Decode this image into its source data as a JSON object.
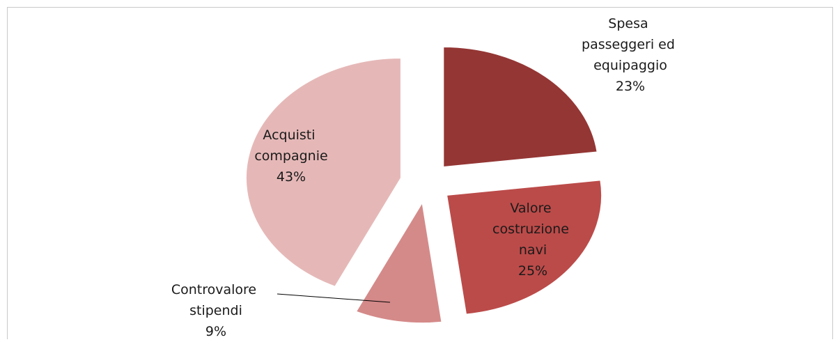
{
  "chart_data": {
    "type": "pie",
    "categories": [
      "Spesa passeggeri ed equipaggio",
      "Valore costruzione navi",
      "Controvalore stipendi",
      "Acquisti compagnie"
    ],
    "values": [
      23,
      25,
      9,
      43
    ],
    "value_labels": [
      "23%",
      "25%",
      "9%",
      "43%"
    ],
    "colors": [
      "#943634",
      "#bb4b49",
      "#d48a89",
      "#e5b8b7"
    ]
  }
}
